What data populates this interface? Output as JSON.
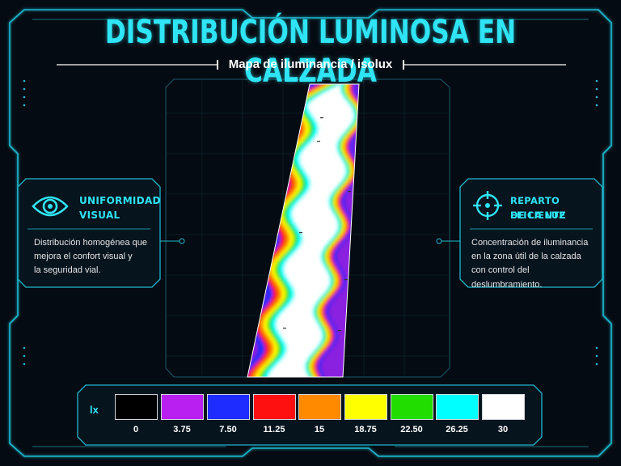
{
  "header": {
    "title": "DISTRIBUCIÓN LUMINOSA EN CALZADA",
    "subtitle": "Mapa de iluminancia / isolux"
  },
  "left_panel": {
    "icon": "eye-icon",
    "title_line1": "UNIFORMIDAD",
    "title_line2": "VISUAL",
    "text_line1": "Distribución homogénea que",
    "text_line2": "mejora el confort visual y",
    "text_line3": "la seguridad vial."
  },
  "right_panel": {
    "icon": "target-icon",
    "title_line1": "REPARTO EFICIENTE",
    "title_line2": "DE LA LUZ",
    "text_line1": "Concentración de iluminancia",
    "text_line2": "en la zona útil de la calzada",
    "text_line3": "con control del deslumbramiento."
  },
  "legend": {
    "unit": "lx",
    "items": [
      {
        "value": "0",
        "color": "#000000"
      },
      {
        "value": "3.75",
        "color": "#b81ff0"
      },
      {
        "value": "7.50",
        "color": "#1f2cff"
      },
      {
        "value": "11.25",
        "color": "#ff1010"
      },
      {
        "value": "15",
        "color": "#ff8a00"
      },
      {
        "value": "18.75",
        "color": "#ffff00"
      },
      {
        "value": "22.50",
        "color": "#22dd00"
      },
      {
        "value": "26.25",
        "color": "#00ffff"
      },
      {
        "value": "30",
        "color": "#ffffff"
      }
    ]
  },
  "theme": {
    "accent": "#2fe4f4",
    "background": "#050b12"
  }
}
